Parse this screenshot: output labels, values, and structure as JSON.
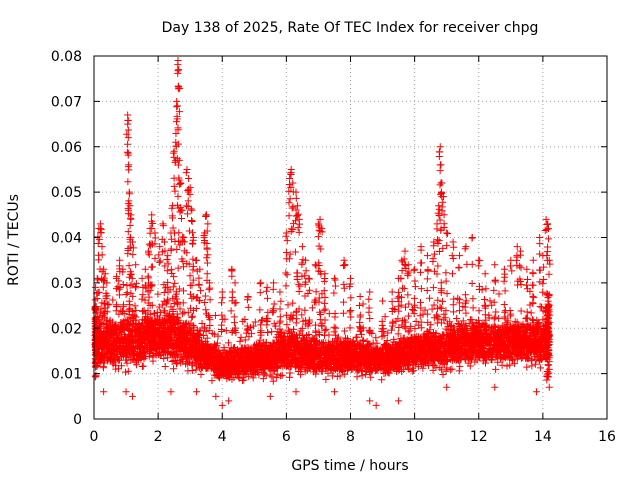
{
  "chart_data": {
    "type": "scatter",
    "title": "Day 138 of 2025, Rate Of TEC Index for receiver chpg",
    "xlabel": "GPS time / hours",
    "ylabel": "ROTI / TECUs",
    "xlim": [
      0,
      16
    ],
    "ylim": [
      0,
      0.08
    ],
    "x_ticks": [
      0,
      2,
      4,
      6,
      8,
      10,
      12,
      14,
      16
    ],
    "x_tick_labels": [
      "0",
      "2",
      "4",
      "6",
      "8",
      "10",
      "12",
      "14",
      "16"
    ],
    "y_ticks": [
      0,
      0.01,
      0.02,
      0.03,
      0.04,
      0.05,
      0.06,
      0.07,
      0.08
    ],
    "y_tick_labels": [
      "0",
      "0.01",
      "0.02",
      "0.03",
      "0.04",
      "0.05",
      "0.06",
      "0.07",
      "0.08"
    ],
    "grid": true,
    "marker": "+",
    "color": "#ff0000",
    "data_range_x": [
      0,
      14.2
    ],
    "envelope": [
      {
        "x": 0.0,
        "base": 0.016,
        "spread": 0.008
      },
      {
        "x": 1.0,
        "base": 0.017,
        "spread": 0.009
      },
      {
        "x": 2.0,
        "base": 0.018,
        "spread": 0.009
      },
      {
        "x": 2.6,
        "base": 0.018,
        "spread": 0.01
      },
      {
        "x": 3.5,
        "base": 0.014,
        "spread": 0.007
      },
      {
        "x": 4.0,
        "base": 0.012,
        "spread": 0.006
      },
      {
        "x": 5.0,
        "base": 0.013,
        "spread": 0.007
      },
      {
        "x": 6.0,
        "base": 0.015,
        "spread": 0.008
      },
      {
        "x": 7.0,
        "base": 0.014,
        "spread": 0.007
      },
      {
        "x": 8.0,
        "base": 0.014,
        "spread": 0.007
      },
      {
        "x": 9.0,
        "base": 0.013,
        "spread": 0.006
      },
      {
        "x": 10.0,
        "base": 0.015,
        "spread": 0.007
      },
      {
        "x": 11.0,
        "base": 0.016,
        "spread": 0.008
      },
      {
        "x": 12.0,
        "base": 0.017,
        "spread": 0.008
      },
      {
        "x": 13.0,
        "base": 0.017,
        "spread": 0.008
      },
      {
        "x": 14.2,
        "base": 0.017,
        "spread": 0.009
      }
    ],
    "peaks": [
      {
        "x": 0.05,
        "y": 0.029
      },
      {
        "x": 0.1,
        "y": 0.031
      },
      {
        "x": 0.15,
        "y": 0.042
      },
      {
        "x": 0.2,
        "y": 0.043
      },
      {
        "x": 0.25,
        "y": 0.038
      },
      {
        "x": 0.3,
        "y": 0.033
      },
      {
        "x": 0.35,
        "y": 0.032
      },
      {
        "x": 0.4,
        "y": 0.03
      },
      {
        "x": 0.7,
        "y": 0.031
      },
      {
        "x": 0.8,
        "y": 0.035
      },
      {
        "x": 0.9,
        "y": 0.033
      },
      {
        "x": 1.05,
        "y": 0.067
      },
      {
        "x": 1.05,
        "y": 0.065
      },
      {
        "x": 1.07,
        "y": 0.062
      },
      {
        "x": 1.08,
        "y": 0.056
      },
      {
        "x": 1.1,
        "y": 0.05
      },
      {
        "x": 1.12,
        "y": 0.047
      },
      {
        "x": 1.15,
        "y": 0.045
      },
      {
        "x": 1.2,
        "y": 0.039
      },
      {
        "x": 1.3,
        "y": 0.034
      },
      {
        "x": 1.5,
        "y": 0.031
      },
      {
        "x": 1.6,
        "y": 0.033
      },
      {
        "x": 1.7,
        "y": 0.037
      },
      {
        "x": 1.75,
        "y": 0.042
      },
      {
        "x": 1.8,
        "y": 0.045
      },
      {
        "x": 1.9,
        "y": 0.041
      },
      {
        "x": 2.05,
        "y": 0.038
      },
      {
        "x": 2.15,
        "y": 0.043
      },
      {
        "x": 2.2,
        "y": 0.039
      },
      {
        "x": 2.3,
        "y": 0.036
      },
      {
        "x": 2.4,
        "y": 0.041
      },
      {
        "x": 2.45,
        "y": 0.047
      },
      {
        "x": 2.5,
        "y": 0.059
      },
      {
        "x": 2.55,
        "y": 0.061
      },
      {
        "x": 2.58,
        "y": 0.07
      },
      {
        "x": 2.6,
        "y": 0.069
      },
      {
        "x": 2.62,
        "y": 0.079
      },
      {
        "x": 2.64,
        "y": 0.077
      },
      {
        "x": 2.66,
        "y": 0.057
      },
      {
        "x": 2.7,
        "y": 0.052
      },
      {
        "x": 2.75,
        "y": 0.046
      },
      {
        "x": 2.8,
        "y": 0.04
      },
      {
        "x": 2.9,
        "y": 0.055
      },
      {
        "x": 2.95,
        "y": 0.053
      },
      {
        "x": 3.0,
        "y": 0.051
      },
      {
        "x": 3.05,
        "y": 0.046
      },
      {
        "x": 3.1,
        "y": 0.04
      },
      {
        "x": 3.2,
        "y": 0.035
      },
      {
        "x": 3.3,
        "y": 0.033
      },
      {
        "x": 3.45,
        "y": 0.041
      },
      {
        "x": 3.5,
        "y": 0.045
      },
      {
        "x": 3.55,
        "y": 0.043
      },
      {
        "x": 3.6,
        "y": 0.03
      },
      {
        "x": 4.0,
        "y": 0.028
      },
      {
        "x": 4.3,
        "y": 0.033
      },
      {
        "x": 4.4,
        "y": 0.03
      },
      {
        "x": 4.8,
        "y": 0.027
      },
      {
        "x": 5.2,
        "y": 0.03
      },
      {
        "x": 5.4,
        "y": 0.029
      },
      {
        "x": 5.6,
        "y": 0.03
      },
      {
        "x": 5.8,
        "y": 0.028
      },
      {
        "x": 6.0,
        "y": 0.041
      },
      {
        "x": 6.1,
        "y": 0.053
      },
      {
        "x": 6.15,
        "y": 0.055
      },
      {
        "x": 6.2,
        "y": 0.052
      },
      {
        "x": 6.3,
        "y": 0.05
      },
      {
        "x": 6.35,
        "y": 0.047
      },
      {
        "x": 6.4,
        "y": 0.044
      },
      {
        "x": 6.5,
        "y": 0.038
      },
      {
        "x": 6.6,
        "y": 0.035
      },
      {
        "x": 6.7,
        "y": 0.031
      },
      {
        "x": 6.9,
        "y": 0.034
      },
      {
        "x": 7.0,
        "y": 0.043
      },
      {
        "x": 7.05,
        "y": 0.044
      },
      {
        "x": 7.1,
        "y": 0.042
      },
      {
        "x": 7.2,
        "y": 0.032
      },
      {
        "x": 7.5,
        "y": 0.031
      },
      {
        "x": 7.8,
        "y": 0.035
      },
      {
        "x": 8.0,
        "y": 0.031
      },
      {
        "x": 8.3,
        "y": 0.027
      },
      {
        "x": 8.6,
        "y": 0.028
      },
      {
        "x": 9.0,
        "y": 0.026
      },
      {
        "x": 9.3,
        "y": 0.028
      },
      {
        "x": 9.5,
        "y": 0.031
      },
      {
        "x": 9.6,
        "y": 0.035
      },
      {
        "x": 9.7,
        "y": 0.037
      },
      {
        "x": 9.8,
        "y": 0.034
      },
      {
        "x": 10.0,
        "y": 0.033
      },
      {
        "x": 10.2,
        "y": 0.038
      },
      {
        "x": 10.4,
        "y": 0.036
      },
      {
        "x": 10.6,
        "y": 0.039
      },
      {
        "x": 10.7,
        "y": 0.043
      },
      {
        "x": 10.75,
        "y": 0.047
      },
      {
        "x": 10.8,
        "y": 0.06
      },
      {
        "x": 10.82,
        "y": 0.056
      },
      {
        "x": 10.85,
        "y": 0.052
      },
      {
        "x": 10.9,
        "y": 0.049
      },
      {
        "x": 11.0,
        "y": 0.041
      },
      {
        "x": 11.2,
        "y": 0.039
      },
      {
        "x": 11.4,
        "y": 0.036
      },
      {
        "x": 11.6,
        "y": 0.038
      },
      {
        "x": 11.8,
        "y": 0.04
      },
      {
        "x": 12.0,
        "y": 0.035
      },
      {
        "x": 12.2,
        "y": 0.032
      },
      {
        "x": 12.5,
        "y": 0.034
      },
      {
        "x": 12.8,
        "y": 0.033
      },
      {
        "x": 13.0,
        "y": 0.035
      },
      {
        "x": 13.2,
        "y": 0.038
      },
      {
        "x": 13.3,
        "y": 0.037
      },
      {
        "x": 13.5,
        "y": 0.033
      },
      {
        "x": 13.7,
        "y": 0.035
      },
      {
        "x": 13.9,
        "y": 0.04
      },
      {
        "x": 14.0,
        "y": 0.036
      },
      {
        "x": 14.1,
        "y": 0.044
      },
      {
        "x": 14.15,
        "y": 0.043
      },
      {
        "x": 14.2,
        "y": 0.035
      }
    ],
    "lows": [
      {
        "x": 0.3,
        "y": 0.006
      },
      {
        "x": 1.0,
        "y": 0.006
      },
      {
        "x": 1.2,
        "y": 0.005
      },
      {
        "x": 2.4,
        "y": 0.006
      },
      {
        "x": 3.2,
        "y": 0.006
      },
      {
        "x": 3.8,
        "y": 0.005
      },
      {
        "x": 4.0,
        "y": 0.003
      },
      {
        "x": 4.2,
        "y": 0.004
      },
      {
        "x": 5.5,
        "y": 0.005
      },
      {
        "x": 6.3,
        "y": 0.006
      },
      {
        "x": 7.5,
        "y": 0.006
      },
      {
        "x": 8.6,
        "y": 0.004
      },
      {
        "x": 8.8,
        "y": 0.003
      },
      {
        "x": 9.5,
        "y": 0.004
      },
      {
        "x": 11.0,
        "y": 0.007
      },
      {
        "x": 12.5,
        "y": 0.007
      },
      {
        "x": 13.8,
        "y": 0.006
      },
      {
        "x": 14.2,
        "y": 0.007
      }
    ]
  }
}
